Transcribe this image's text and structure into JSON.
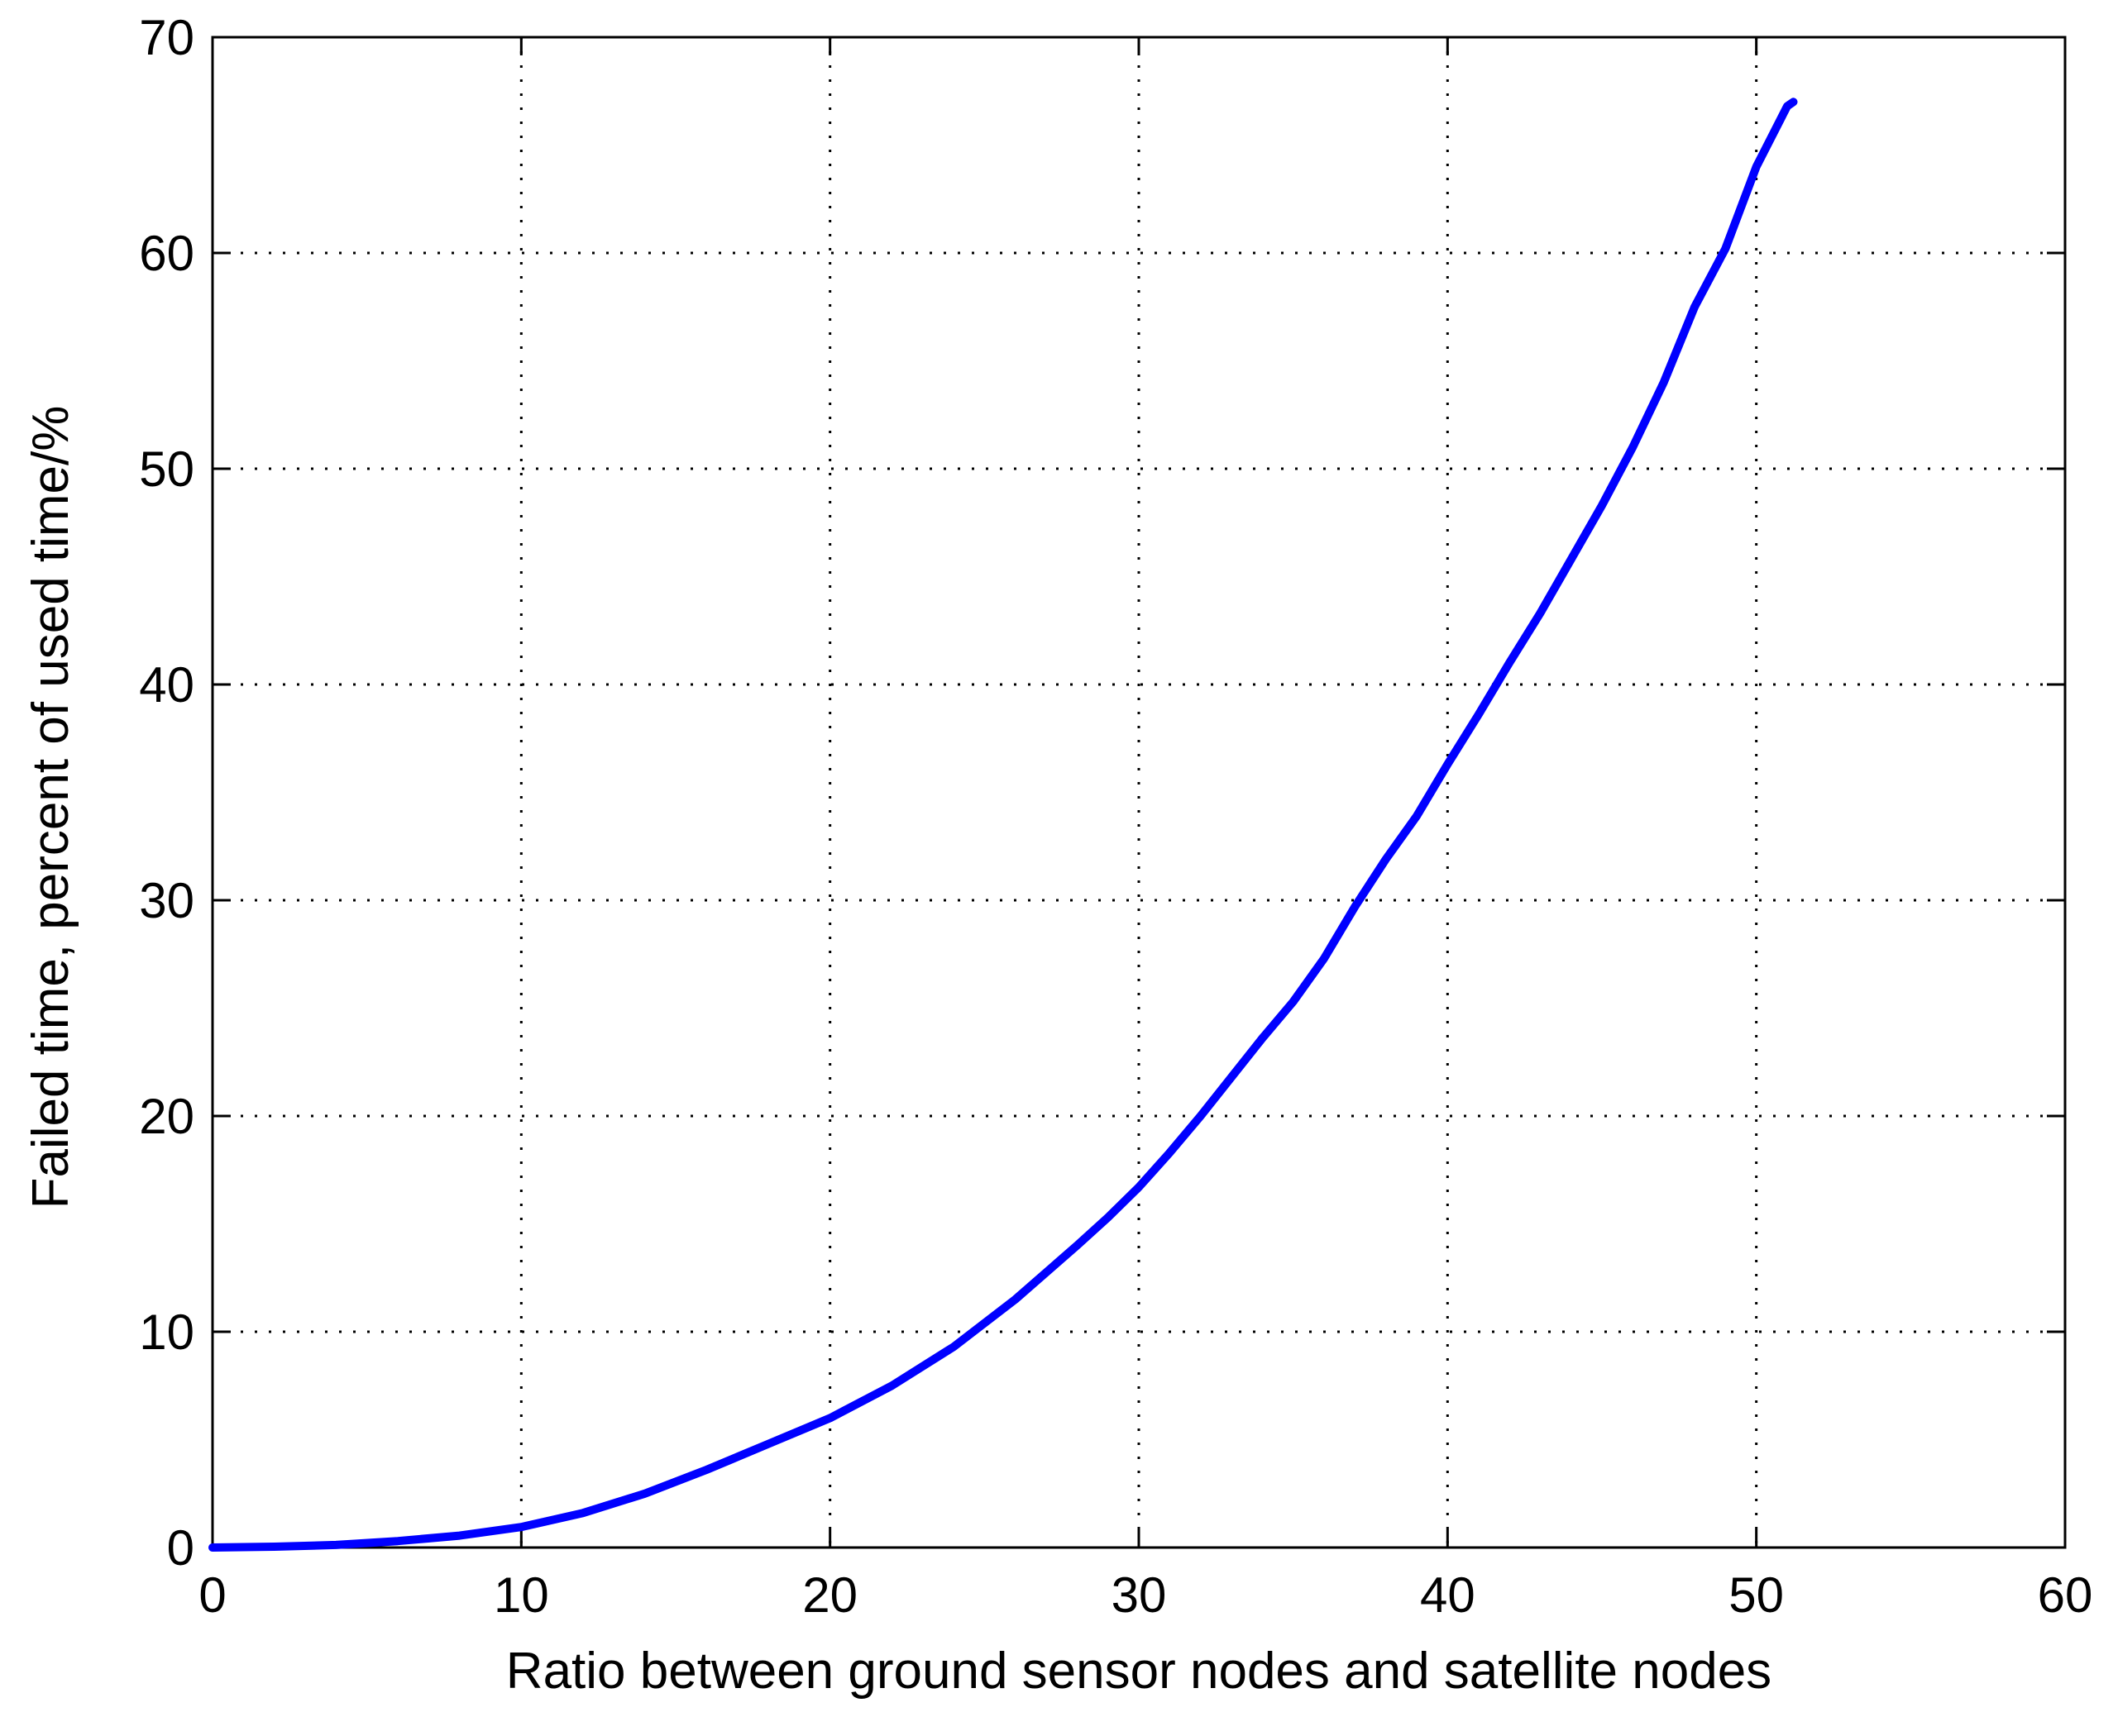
{
  "chart_data": {
    "type": "line",
    "title": "",
    "xlabel": "Ratio between ground sensor nodes and satellite nodes",
    "ylabel": "Failed time, percent of used time/%",
    "xlim": [
      0,
      60
    ],
    "ylim": [
      0,
      70
    ],
    "xticks": [
      0,
      10,
      20,
      30,
      40,
      50,
      60
    ],
    "yticks": [
      0,
      10,
      20,
      30,
      40,
      50,
      60,
      70
    ],
    "grid": "dotted",
    "legend": "none",
    "series": [
      {
        "color": "#0000ff",
        "x": [
          0,
          2,
          4,
          6,
          8,
          10,
          12,
          14,
          16,
          18,
          20,
          22,
          24,
          26,
          28,
          29,
          30,
          31,
          32,
          33,
          34,
          35,
          36,
          37,
          38,
          39,
          40,
          41,
          42,
          43,
          44,
          45,
          46,
          47,
          48,
          49,
          50,
          51,
          51.2
        ],
        "values": [
          0,
          0.04,
          0.12,
          0.3,
          0.55,
          0.95,
          1.6,
          2.5,
          3.6,
          4.8,
          6.0,
          7.5,
          9.3,
          11.5,
          14.0,
          15.3,
          16.7,
          18.3,
          20.0,
          21.8,
          23.6,
          25.3,
          27.3,
          29.7,
          31.9,
          33.9,
          36.3,
          38.6,
          41.0,
          43.3,
          45.8,
          48.3,
          51.0,
          54.0,
          57.5,
          60.2,
          64.0,
          66.8,
          67.0
        ]
      }
    ]
  }
}
